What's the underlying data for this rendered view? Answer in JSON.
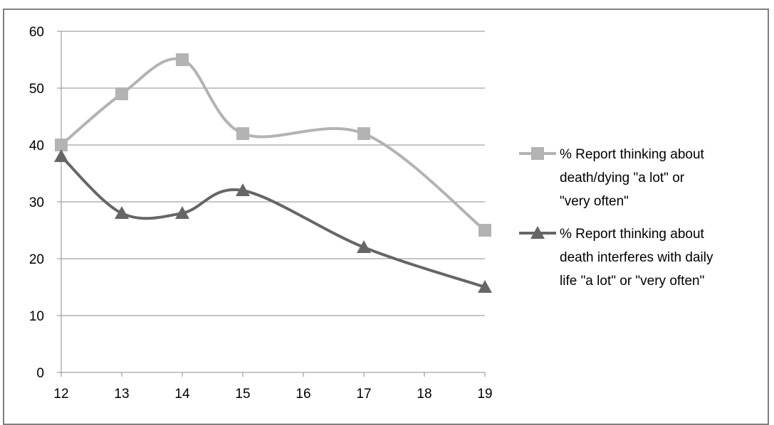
{
  "chart_data": {
    "type": "line",
    "x": [
      12,
      13,
      14,
      15,
      17,
      19
    ],
    "xticks": [
      12,
      13,
      14,
      15,
      16,
      17,
      18,
      19
    ],
    "xlim": [
      12,
      19
    ],
    "ylim": [
      0,
      60
    ],
    "yticks": [
      0,
      10,
      20,
      30,
      40,
      50,
      60
    ],
    "grid": "horizontal",
    "smooth": true,
    "legend_position": "right",
    "series": [
      {
        "name": "% Report thinking about death/dying \"a lot\" or \"very often\"",
        "legend_lines": [
          "% Report thinking about",
          "death/dying \"a lot\" or",
          "\"very often\""
        ],
        "values": [
          40,
          49,
          55,
          42,
          42,
          25
        ],
        "color": "#b3b3b3",
        "marker": "square"
      },
      {
        "name": "% Report thinking about death interferes with daily life \"a lot\" or \"very often\"",
        "legend_lines": [
          "% Report thinking about",
          "death interferes with daily",
          "life \"a lot\" or \"very often\""
        ],
        "values": [
          38,
          28,
          28,
          32,
          22,
          15
        ],
        "color": "#666666",
        "marker": "triangle"
      }
    ]
  }
}
